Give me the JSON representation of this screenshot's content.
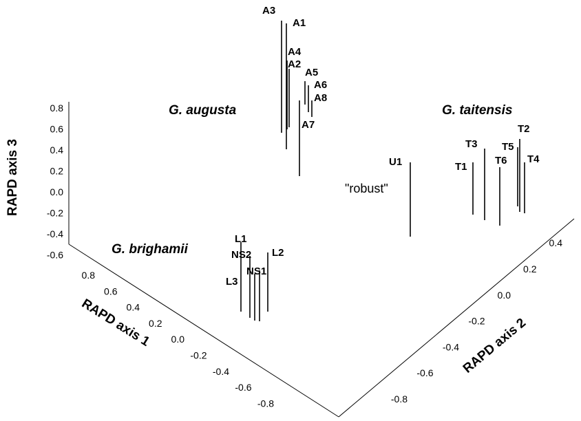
{
  "chart_data": {
    "type": "scatter",
    "projection": "3d",
    "marker_style": "vertical drop lines",
    "axes": {
      "x": {
        "label": "RAPD axis 1",
        "ticks": [
          "0.8",
          "0.6",
          "0.4",
          "0.2",
          "0.0",
          "-0.2",
          "-0.4",
          "-0.6",
          "-0.8"
        ]
      },
      "y": {
        "label": "RAPD axis 2",
        "ticks": [
          "-0.8",
          "-0.6",
          "-0.4",
          "-0.2",
          "0.0",
          "0.2",
          "0.4"
        ]
      },
      "z": {
        "label": "RAPD axis 3",
        "ticks": [
          "0.8",
          "0.6",
          "0.4",
          "0.2",
          "0.0",
          "-0.2",
          "-0.4",
          "-0.6"
        ]
      }
    },
    "group_labels": [
      "G. augusta",
      "G. taitensis",
      "G. brighamii"
    ],
    "annotations": [
      "\"robust\""
    ],
    "points": [
      {
        "label": "A3",
        "group": "G. augusta"
      },
      {
        "label": "A1",
        "group": "G. augusta"
      },
      {
        "label": "A4",
        "group": "G. augusta"
      },
      {
        "label": "A2",
        "group": "G. augusta"
      },
      {
        "label": "A5",
        "group": "G. augusta"
      },
      {
        "label": "A6",
        "group": "G. augusta"
      },
      {
        "label": "A8",
        "group": "G. augusta"
      },
      {
        "label": "A7",
        "group": "G. augusta"
      },
      {
        "label": "U1",
        "group": "\"robust\""
      },
      {
        "label": "T1",
        "group": "G. taitensis"
      },
      {
        "label": "T3",
        "group": "G. taitensis"
      },
      {
        "label": "T6",
        "group": "G. taitensis"
      },
      {
        "label": "T5",
        "group": "G. taitensis"
      },
      {
        "label": "T2",
        "group": "G. taitensis"
      },
      {
        "label": "T4",
        "group": "G. taitensis"
      },
      {
        "label": "L1",
        "group": "G. brighamii"
      },
      {
        "label": "NS2",
        "group": "G. brighamii"
      },
      {
        "label": "L2",
        "group": "G. brighamii"
      },
      {
        "label": "NS1",
        "group": "G. brighamii"
      },
      {
        "label": "L3",
        "group": "G. brighamii"
      }
    ]
  }
}
